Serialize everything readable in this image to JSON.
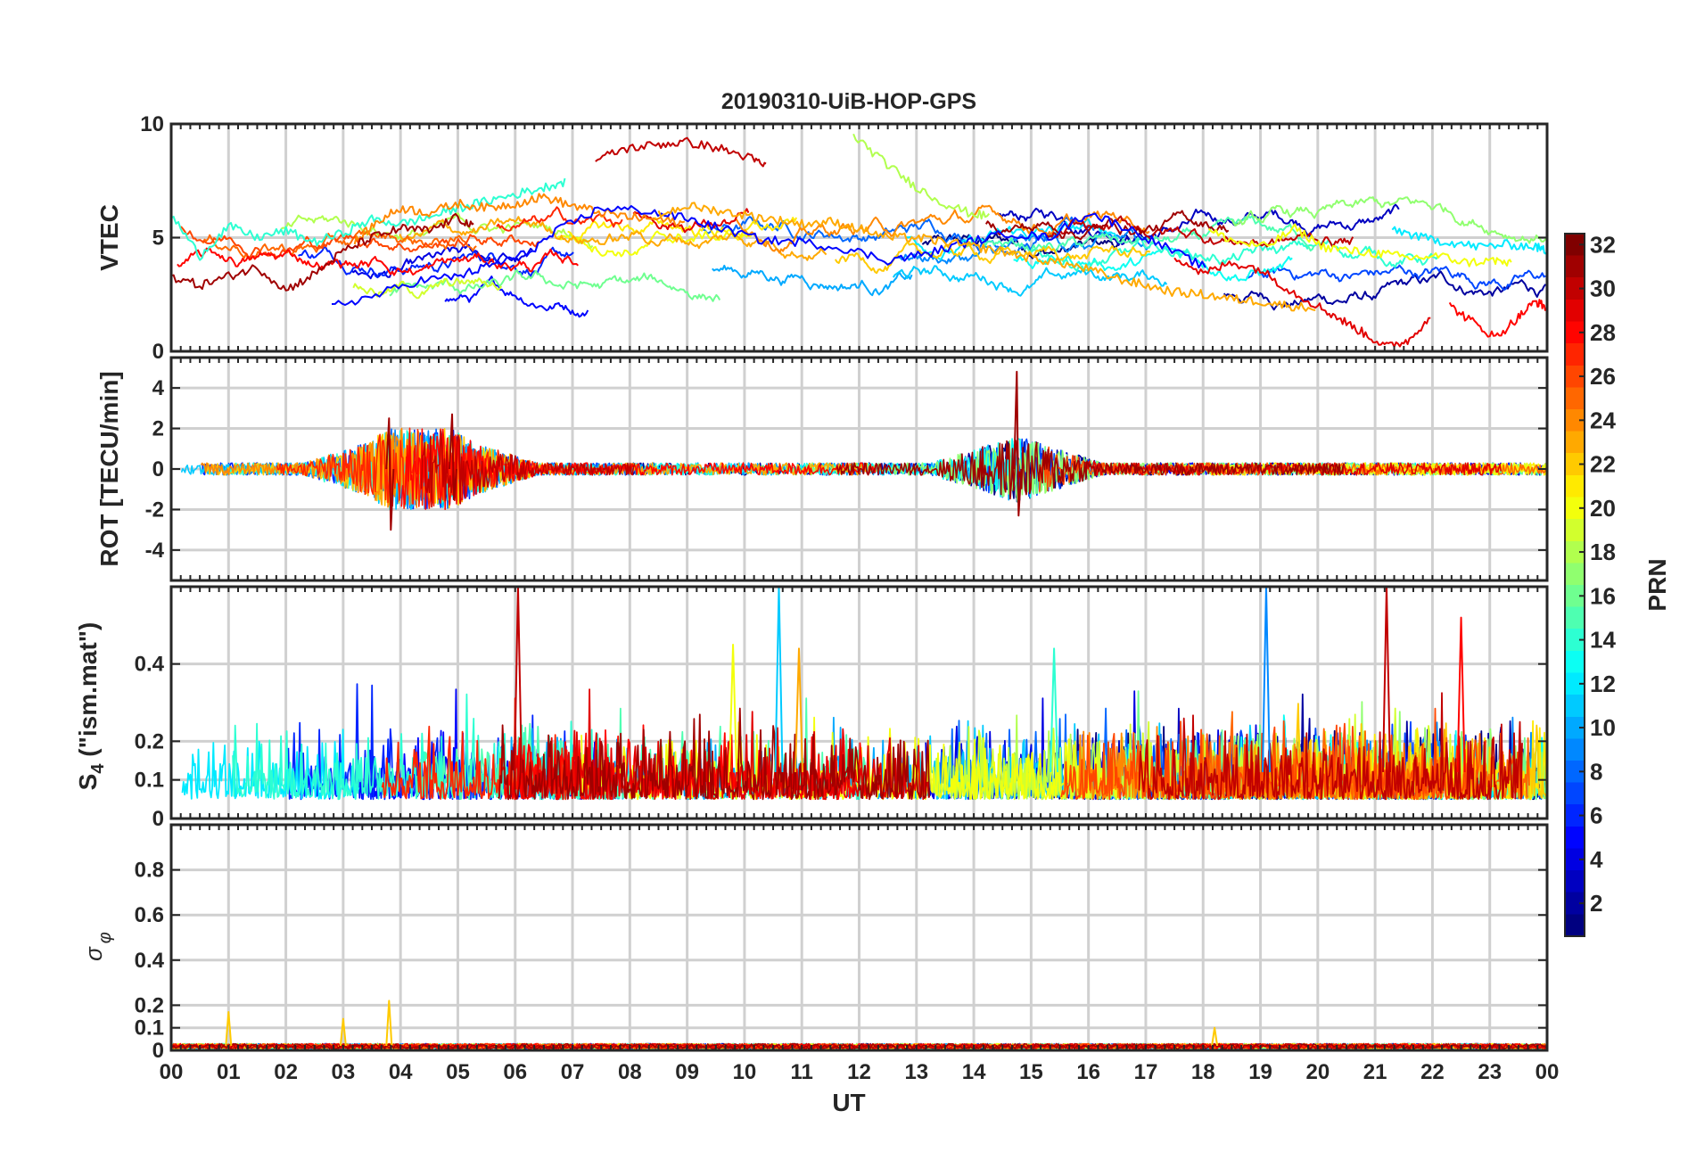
{
  "chart_data": {
    "type": "line",
    "title": "20190310-UiB-HOP-GPS",
    "xlabel": "UT",
    "x_tick_labels": [
      "00",
      "01",
      "02",
      "03",
      "04",
      "05",
      "06",
      "07",
      "08",
      "09",
      "10",
      "11",
      "12",
      "13",
      "14",
      "15",
      "16",
      "17",
      "18",
      "19",
      "20",
      "21",
      "22",
      "23",
      "00"
    ],
    "xlim": [
      0,
      24
    ],
    "panels": [
      {
        "name": "vtec",
        "ylabel": "VTEC",
        "ylim": [
          0,
          10
        ],
        "yticks": [
          0,
          5,
          10
        ],
        "ytick_labels": [
          "0",
          "5",
          "10"
        ],
        "description_series": [
          {
            "prn": 30,
            "x": [
              7.4,
              7.9,
              8.5,
              9.0,
              9.6,
              10.1,
              10.4
            ],
            "y": [
              8.4,
              8.9,
              9.1,
              9.2,
              8.9,
              8.5,
              8.1
            ]
          },
          {
            "prn": 18,
            "x": [
              11.9,
              12.4,
              12.9,
              13.4,
              13.9,
              14.3
            ],
            "y": [
              9.5,
              8.4,
              7.4,
              6.6,
              6.1,
              5.9
            ]
          },
          {
            "prn": 14,
            "x": [
              0,
              0.5,
              1.0,
              1.5,
              2.0,
              2.5,
              3.0,
              3.5,
              4.0,
              4.5,
              5.0,
              5.5,
              6.0,
              6.5,
              6.9
            ],
            "y": [
              6.0,
              4.2,
              5.5,
              5.0,
              5.3,
              4.8,
              5.2,
              5.8,
              5.6,
              5.9,
              6.3,
              6.6,
              6.9,
              7.2,
              7.5
            ]
          },
          {
            "prn": 24,
            "x": [
              3.2,
              3.6,
              4.0,
              4.5,
              5.0,
              5.5,
              6.0,
              6.5,
              7.0,
              7.5,
              8.0,
              8.5,
              9.0
            ],
            "y": [
              4.8,
              5.7,
              6.3,
              6.1,
              6.5,
              6.3,
              6.5,
              6.8,
              6.4,
              6.1,
              5.9,
              5.8,
              5.6
            ]
          },
          {
            "prn": 31,
            "x": [
              0,
              0.5,
              1.0,
              1.5,
              2.0,
              2.5,
              3.0,
              3.5,
              4.0,
              4.5,
              5.0,
              5.3
            ],
            "y": [
              3.3,
              2.9,
              3.3,
              3.7,
              2.7,
              3.4,
              4.4,
              5.0,
              5.4,
              5.3,
              5.9,
              5.4
            ]
          },
          {
            "prn": 5,
            "x": [
              2.8,
              3.5,
              4.3,
              5.0,
              5.6,
              6.2,
              6.8,
              7.5,
              8.2,
              8.9,
              9.6,
              10.3,
              11.0,
              11.8,
              12.5,
              13.2,
              13.9,
              14.6,
              15.3,
              16.0,
              16.7,
              17.4,
              18.1
            ],
            "y": [
              2.0,
              2.4,
              3.1,
              3.3,
              3.8,
              4.3,
              5.4,
              6.3,
              6.2,
              5.9,
              5.4,
              4.9,
              4.8,
              4.5,
              4.0,
              4.3,
              4.8,
              5.2,
              5.0,
              6.1,
              5.4,
              4.5,
              3.6
            ]
          },
          {
            "prn": 23,
            "x": [
              8.5,
              9.0,
              9.5,
              10.0,
              10.5,
              11.0,
              11.5,
              12.0,
              12.5,
              13.0,
              13.5,
              14.0,
              14.5,
              15.0,
              15.5,
              16.0,
              16.5,
              17.0,
              17.5,
              18.0,
              18.5,
              19.0,
              19.5,
              20.0
            ],
            "y": [
              6.0,
              6.4,
              6.2,
              6.0,
              5.8,
              5.6,
              5.7,
              5.4,
              5.0,
              5.0,
              4.8,
              4.6,
              4.4,
              4.1,
              3.9,
              3.6,
              3.2,
              2.9,
              2.6,
              2.5,
              2.3,
              2.2,
              2.0,
              1.9
            ]
          },
          {
            "prn": 20,
            "x": [
              18.1,
              18.6,
              19.1,
              19.6,
              20.1,
              20.6,
              21.1,
              21.6,
              22.1,
              22.6,
              23.1,
              23.4
            ],
            "y": [
              5.3,
              4.8,
              4.6,
              5.4,
              4.6,
              4.4,
              4.3,
              4.1,
              4.2,
              3.9,
              4.0,
              3.8
            ]
          },
          {
            "prn": 12,
            "x": [
              21.3,
              21.8,
              22.3,
              22.8,
              23.3,
              23.8,
              24.0
            ],
            "y": [
              5.4,
              5.0,
              4.8,
              4.6,
              4.7,
              4.6,
              4.4
            ]
          },
          {
            "prn": 29,
            "x": [
              17.5,
              18.0,
              18.5,
              19.0,
              19.5,
              20.0,
              20.4,
              20.8,
              21.2,
              21.6,
              22.0
            ],
            "y": [
              4.2,
              3.4,
              3.9,
              3.6,
              2.7,
              2.0,
              1.4,
              0.8,
              0.2,
              0.5,
              1.7
            ]
          },
          {
            "prn": 28,
            "x": [
              22.3,
              22.7,
              23.1,
              23.5,
              23.8,
              24.0
            ],
            "y": [
              2.0,
              1.3,
              0.6,
              1.5,
              2.2,
              1.9
            ]
          }
        ]
      },
      {
        "name": "rot",
        "ylabel": "ROT [TECU/min]",
        "ylim": [
          -5.5,
          5.5
        ],
        "yticks": [
          -4,
          -2,
          0,
          2,
          4
        ],
        "ytick_labels": [
          "-4",
          "-2",
          "0",
          "2",
          "4"
        ],
        "description_spikes": [
          {
            "x": 3.8,
            "max": 2.5,
            "min": -3.0
          },
          {
            "x": 4.9,
            "max": 2.7,
            "min": -1.5
          },
          {
            "x": 14.75,
            "max": 4.8,
            "min": -2.3
          }
        ],
        "baseline_amplitude": 0.3
      },
      {
        "name": "s4",
        "ylabel": "S4 (\"ism.mat\")",
        "ylabel_main": "S",
        "ylabel_sub": "4",
        "ylabel_rest": " (\"ism.mat\")",
        "ylim": [
          0,
          0.6
        ],
        "yticks": [
          0,
          0.1,
          0.2,
          0.4
        ],
        "ytick_labels": [
          "0",
          "0.1",
          "0.2",
          "0.4"
        ],
        "description_peaks": [
          {
            "x": 6.05,
            "value": 0.6,
            "prn": 30
          },
          {
            "x": 10.6,
            "value": 0.6,
            "prn": 11
          },
          {
            "x": 10.95,
            "value": 0.44,
            "prn": 23
          },
          {
            "x": 19.1,
            "value": 0.6,
            "prn": 9
          },
          {
            "x": 21.2,
            "value": 0.6,
            "prn": 30
          },
          {
            "x": 22.5,
            "value": 0.52,
            "prn": 28
          },
          {
            "x": 9.8,
            "value": 0.45,
            "prn": 20
          },
          {
            "x": 15.4,
            "value": 0.44,
            "prn": 14
          }
        ]
      },
      {
        "name": "sigma_phi",
        "ylabel": "σφ",
        "ylabel_main": "σ",
        "ylabel_sub": "φ",
        "ylim": [
          0,
          1
        ],
        "yticks": [
          0,
          0.1,
          0.2,
          0.4,
          0.6,
          0.8
        ],
        "ytick_labels": [
          "0",
          "0.1",
          "0.2",
          "0.4",
          "0.6",
          "0.8"
        ],
        "description_peaks": [
          {
            "x": 1.0,
            "value": 0.17
          },
          {
            "x": 3.0,
            "value": 0.14
          },
          {
            "x": 3.8,
            "value": 0.22
          },
          {
            "x": 18.2,
            "value": 0.1
          }
        ],
        "baseline_value": 0.02
      }
    ],
    "colorbar": {
      "label": "PRN",
      "colormap": "jet",
      "range": [
        1,
        32
      ],
      "ticks": [
        2,
        4,
        6,
        8,
        10,
        12,
        14,
        16,
        18,
        20,
        22,
        24,
        26,
        28,
        30,
        32
      ],
      "tick_labels": [
        "2",
        "4",
        "6",
        "8",
        "10",
        "12",
        "14",
        "16",
        "18",
        "20",
        "22",
        "24",
        "26",
        "28",
        "30",
        "32"
      ]
    }
  }
}
